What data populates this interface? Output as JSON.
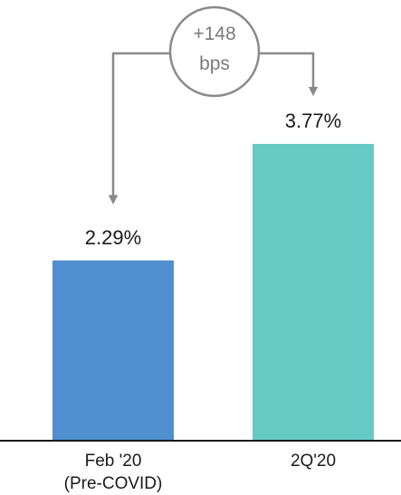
{
  "chart_data": {
    "type": "bar",
    "categories": [
      "Feb '20",
      "2Q'20"
    ],
    "category_sublabels": [
      "(Pre-COVID)",
      ""
    ],
    "values": [
      2.29,
      3.77
    ],
    "value_labels": [
      "2.29%",
      "3.77%"
    ],
    "title": "",
    "xlabel": "",
    "ylabel": "",
    "ylim": [
      0,
      4.2
    ],
    "grid": false,
    "legend": "none",
    "colors": [
      "#4f8fcf",
      "#67c9c4"
    ],
    "annotation": {
      "lines": [
        "+148",
        "bps"
      ],
      "from_category": 1,
      "to_category": 0,
      "color": "#8a8a8a"
    }
  }
}
